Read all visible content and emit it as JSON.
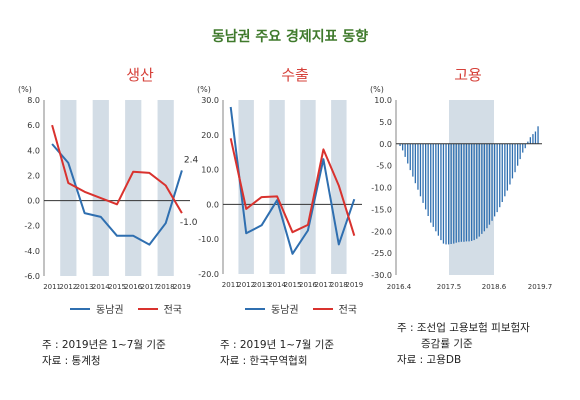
{
  "title": "동남권 주요 경제지표 동향",
  "colors": {
    "title": "#3f7a2c",
    "panel_title": "#d6413a",
    "regional": "#2f6fb0",
    "national": "#d9322e",
    "band": "#d3dde6",
    "zero": "#333333"
  },
  "chart_data": [
    {
      "type": "line",
      "title": "생산",
      "ylabel": "(%)",
      "ylim": [
        -6.0,
        8.0
      ],
      "yticks": [
        "8.0",
        "6.0",
        "4.0",
        "2.0",
        "0.0",
        "-2.0",
        "-4.0",
        "-6.0"
      ],
      "x": [
        "2011",
        "2012",
        "2013",
        "2014",
        "2015",
        "2016",
        "2017",
        "2018",
        "2019"
      ],
      "series": [
        {
          "name": "동남권",
          "values": [
            4.5,
            3.0,
            -1.0,
            -1.3,
            -2.8,
            -2.8,
            -3.5,
            -1.8,
            2.4
          ]
        },
        {
          "name": "전국",
          "values": [
            6.0,
            1.4,
            0.7,
            0.2,
            -0.3,
            2.3,
            2.2,
            1.2,
            -1.0
          ]
        }
      ],
      "data_labels": [
        "2.4",
        "-1.0"
      ],
      "legend": [
        "동남권",
        "전국"
      ],
      "notes": [
        "주 : 2019년은 1~7월 기준",
        "자료 : 통계청"
      ]
    },
    {
      "type": "line",
      "title": "수출",
      "ylabel": "(%)",
      "ylim": [
        -20.0,
        30.0
      ],
      "yticks": [
        "30.0",
        "20.0",
        "10.0",
        "0.0",
        "-10.0",
        "-20.0"
      ],
      "x": [
        "2011",
        "2012",
        "2013",
        "2014",
        "2015",
        "2016",
        "2017",
        "2018",
        "2019"
      ],
      "series": [
        {
          "name": "동남권",
          "values": [
            28.0,
            -8.3,
            -6.0,
            1.2,
            -14.2,
            -7.5,
            13.0,
            -11.5,
            1.5
          ]
        },
        {
          "name": "전국",
          "values": [
            19.0,
            -1.3,
            2.1,
            2.3,
            -8.0,
            -5.9,
            15.8,
            5.4,
            -9.0
          ]
        }
      ],
      "legend": [
        "동남권",
        "전국"
      ],
      "notes": [
        "주 : 2019년 1~7월 기준",
        "자료 : 한국무역협회"
      ]
    },
    {
      "type": "bar",
      "title": "고용",
      "ylabel": "(%)",
      "ylim": [
        -30.0,
        10.0
      ],
      "yticks": [
        "10.0",
        "5.0",
        "0.0",
        "-5.0",
        "-10.0",
        "-15.0",
        "-20.0",
        "-25.0",
        "-30.0"
      ],
      "xticks": [
        "2016.4",
        "2017.5",
        "2018.6",
        "2019.7"
      ],
      "values": [
        -0.5,
        -1.5,
        -3.0,
        -4.5,
        -6.0,
        -7.5,
        -9.0,
        -10.5,
        -12.0,
        -13.5,
        -15.0,
        -16.5,
        -18.0,
        -19.0,
        -20.0,
        -21.0,
        -22.0,
        -22.8,
        -23.0,
        -23.0,
        -22.9,
        -22.8,
        -22.6,
        -22.5,
        -22.4,
        -22.4,
        -22.3,
        -22.3,
        -22.2,
        -22.0,
        -21.7,
        -21.2,
        -20.6,
        -20.0,
        -19.3,
        -18.5,
        -17.6,
        -16.6,
        -15.6,
        -14.5,
        -13.3,
        -12.0,
        -10.7,
        -9.3,
        -7.9,
        -6.5,
        -5.0,
        -3.5,
        -2.0,
        -1.0,
        0.5,
        1.5,
        2.2,
        2.8,
        4.0
      ],
      "notes": [
        "주 : 조선업 고용보험 피보험자",
        "증감률 기준",
        "자료 : 고용DB"
      ]
    }
  ]
}
